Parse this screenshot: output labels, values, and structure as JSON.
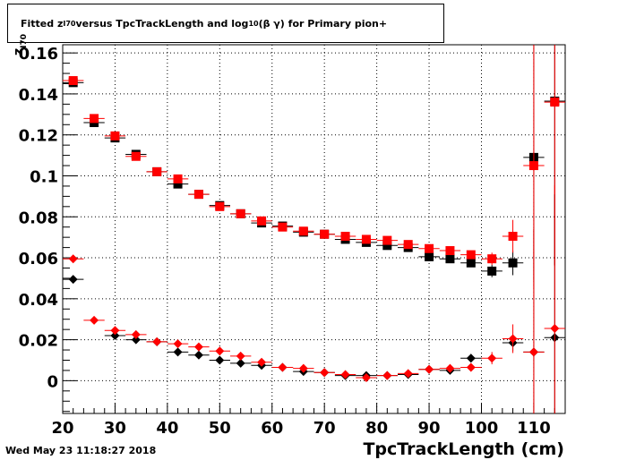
{
  "title": {
    "prefix": "Fitted  z",
    "sub1": "I70",
    "middle": "  versus TpcTrackLength and log",
    "sub2": "10",
    "suffix": " (β γ) for Primary pion+"
  },
  "datestamp": "Wed May 23 11:18:27 2018",
  "chart_data": {
    "type": "scatter",
    "title": "Fitted z_I70 versus TpcTrackLength and log_10 (β γ) for Primary pion+",
    "xlabel": "TpcTrackLength (cm)",
    "ylabel": "z_I70",
    "xlim": [
      20,
      116
    ],
    "ylim": [
      -0.016,
      0.164
    ],
    "grid": true,
    "x_ticks": [
      20,
      30,
      40,
      50,
      60,
      70,
      80,
      90,
      100,
      110
    ],
    "y_ticks": [
      0,
      0.02,
      0.04,
      0.06,
      0.08,
      0.1,
      0.12,
      0.14,
      0.16
    ],
    "y_tick_labels": [
      "0",
      "0.02",
      "0.04",
      "0.06",
      "0.08",
      "0.1",
      "0.12",
      "0.14",
      "0.16"
    ],
    "series": [
      {
        "marker": "square",
        "color": "#000000",
        "x_half_width": 2,
        "points": [
          [
            22,
            0.1455
          ],
          [
            26,
            0.126
          ],
          [
            30,
            0.1185
          ],
          [
            34,
            0.1105
          ],
          [
            38,
            0.102
          ],
          [
            42,
            0.096
          ],
          [
            46,
            0.091
          ],
          [
            50,
            0.0855
          ],
          [
            54,
            0.0815
          ],
          [
            58,
            0.077
          ],
          [
            62,
            0.0755
          ],
          [
            66,
            0.0725
          ],
          [
            70,
            0.0715
          ],
          [
            74,
            0.069
          ],
          [
            78,
            0.0675
          ],
          [
            82,
            0.066
          ],
          [
            86,
            0.065
          ],
          [
            90,
            0.0605
          ],
          [
            94,
            0.0595
          ],
          [
            98,
            0.0575
          ],
          [
            102,
            0.0535
          ],
          [
            106,
            0.0575
          ],
          [
            110,
            0.109
          ],
          [
            114,
            0.1365
          ]
        ],
        "errors": [
          0.001,
          0.001,
          0.001,
          0.001,
          0.001,
          0.001,
          0.001,
          0.001,
          0.001,
          0.001,
          0.001,
          0.001,
          0.001,
          0.001,
          0.001,
          0.001,
          0.001,
          0.0015,
          0.0015,
          0.002,
          0.003,
          0.006,
          0.06,
          0.08
        ]
      },
      {
        "marker": "square",
        "color": "#ff0000",
        "x_half_width": 2,
        "points": [
          [
            22,
            0.1465
          ],
          [
            26,
            0.128
          ],
          [
            30,
            0.1195
          ],
          [
            34,
            0.1095
          ],
          [
            38,
            0.102
          ],
          [
            42,
            0.0985
          ],
          [
            46,
            0.091
          ],
          [
            50,
            0.085
          ],
          [
            54,
            0.0815
          ],
          [
            58,
            0.078
          ],
          [
            62,
            0.075
          ],
          [
            66,
            0.073
          ],
          [
            70,
            0.0715
          ],
          [
            74,
            0.0705
          ],
          [
            78,
            0.069
          ],
          [
            82,
            0.0685
          ],
          [
            86,
            0.0665
          ],
          [
            90,
            0.0645
          ],
          [
            94,
            0.0635
          ],
          [
            98,
            0.0615
          ],
          [
            102,
            0.0595
          ],
          [
            106,
            0.0705
          ],
          [
            110,
            0.105
          ],
          [
            114,
            0.136
          ]
        ],
        "errors": [
          0.001,
          0.001,
          0.001,
          0.001,
          0.001,
          0.001,
          0.001,
          0.001,
          0.001,
          0.001,
          0.001,
          0.001,
          0.001,
          0.001,
          0.001,
          0.001,
          0.001,
          0.0015,
          0.0015,
          0.002,
          0.003,
          0.008,
          0.06,
          0.08
        ]
      },
      {
        "marker": "diamond",
        "color": "#000000",
        "x_half_width": 2,
        "points": [
          [
            22,
            0.0495
          ],
          [
            30,
            0.022
          ],
          [
            34,
            0.02
          ],
          [
            38,
            0.019
          ],
          [
            42,
            0.014
          ],
          [
            46,
            0.0125
          ],
          [
            50,
            0.01
          ],
          [
            54,
            0.0085
          ],
          [
            58,
            0.0075
          ],
          [
            62,
            0.0065
          ],
          [
            66,
            0.0045
          ],
          [
            70,
            0.004
          ],
          [
            74,
            0.0025
          ],
          [
            78,
            0.0025
          ],
          [
            82,
            0.0025
          ],
          [
            86,
            0.003
          ],
          [
            90,
            0.0055
          ],
          [
            94,
            0.005
          ],
          [
            98,
            0.011
          ],
          [
            106,
            0.0185
          ],
          [
            110,
            0.014
          ],
          [
            114,
            0.021
          ]
        ],
        "errors": [
          0.001,
          0.001,
          0.001,
          0.001,
          0.001,
          0.001,
          0.001,
          0.001,
          0.001,
          0.001,
          0.001,
          0.001,
          0.001,
          0.001,
          0.001,
          0.001,
          0.001,
          0.001,
          0.002,
          0.004,
          0.06,
          0.07
        ]
      },
      {
        "marker": "diamond",
        "color": "#ff0000",
        "x_half_width": 2,
        "points": [
          [
            22,
            0.0595
          ],
          [
            26,
            0.0295
          ],
          [
            30,
            0.0245
          ],
          [
            34,
            0.0225
          ],
          [
            38,
            0.019
          ],
          [
            42,
            0.018
          ],
          [
            46,
            0.0165
          ],
          [
            50,
            0.0145
          ],
          [
            54,
            0.012
          ],
          [
            58,
            0.009
          ],
          [
            62,
            0.0065
          ],
          [
            66,
            0.006
          ],
          [
            70,
            0.004
          ],
          [
            74,
            0.003
          ],
          [
            78,
            0.0015
          ],
          [
            82,
            0.0025
          ],
          [
            86,
            0.0035
          ],
          [
            90,
            0.0055
          ],
          [
            94,
            0.006
          ],
          [
            98,
            0.0065
          ],
          [
            102,
            0.011
          ],
          [
            106,
            0.0205
          ],
          [
            110,
            0.014
          ],
          [
            114,
            0.0255
          ]
        ],
        "errors": [
          0.001,
          0.001,
          0.001,
          0.001,
          0.001,
          0.001,
          0.001,
          0.001,
          0.001,
          0.001,
          0.001,
          0.001,
          0.001,
          0.001,
          0.001,
          0.001,
          0.001,
          0.001,
          0.001,
          0.002,
          0.003,
          0.007,
          0.06,
          0.07
        ]
      }
    ]
  }
}
